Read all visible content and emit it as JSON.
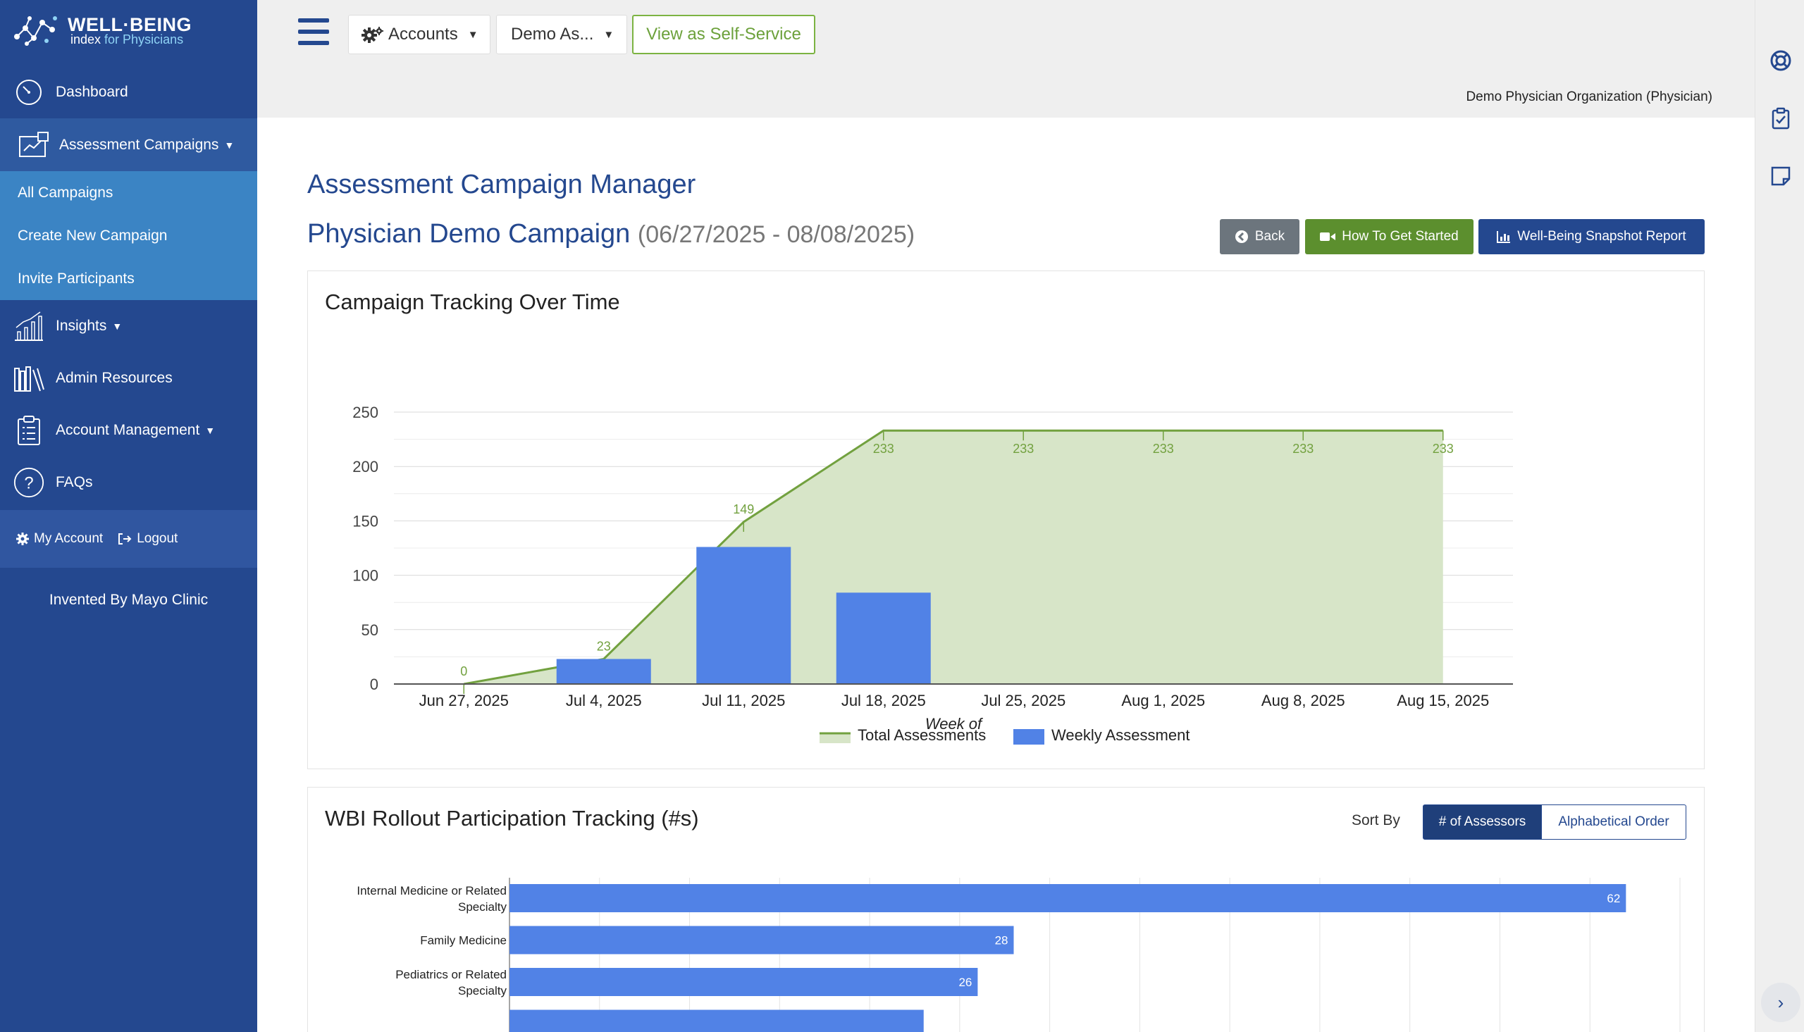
{
  "brand": {
    "title": "WELL·BEING",
    "sub_a": "index",
    "sub_b": "for Physicians"
  },
  "sidebar": {
    "dashboard": "Dashboard",
    "campaigns": "Assessment Campaigns",
    "sub": [
      "All Campaigns",
      "Create New Campaign",
      "Invite Participants"
    ],
    "insights": "Insights",
    "admin": "Admin Resources",
    "account_mgmt": "Account Management",
    "faqs": "FAQs",
    "my_account": "My Account",
    "logout": "Logout",
    "invented": "Invented By Mayo Clinic"
  },
  "topbar": {
    "accounts": "Accounts",
    "demo": "Demo As...",
    "self_service": "View as Self-Service",
    "org": "Demo Physician Organization (Physician)"
  },
  "page": {
    "title": "Assessment Campaign Manager",
    "campaign": "Physician Demo Campaign",
    "dates": "(06/27/2025 - 08/08/2025)",
    "back": "Back",
    "how_to": "How To Get Started",
    "snapshot": "Well-Being Snapshot Report"
  },
  "panel1": {
    "title": "Campaign Tracking Over Time"
  },
  "panel2": {
    "title": "WBI Rollout Participation Tracking (#s)",
    "sort_label": "Sort By",
    "sort_a": "# of Assessors",
    "sort_b": "Alphabetical Order"
  },
  "colors": {
    "primary": "#24488f",
    "bar": "#5182e6",
    "line": "#72a13f",
    "area": "#d7e5c8"
  },
  "chart_data": [
    {
      "type": "bar",
      "title": "",
      "xlabel": "Week of",
      "ylabel": "",
      "ylim": [
        0,
        250
      ],
      "yticks": [
        0,
        50,
        100,
        150,
        200,
        250
      ],
      "categories": [
        "Jun 27, 2025",
        "Jul 4, 2025",
        "Jul 11, 2025",
        "Jul 18, 2025",
        "Jul 25, 2025",
        "Aug 1, 2025",
        "Aug 8, 2025",
        "Aug 15, 2025"
      ],
      "series": [
        {
          "name": "Total Assessments",
          "kind": "area-line",
          "values": [
            0,
            23,
            149,
            233,
            233,
            233,
            233,
            233
          ]
        },
        {
          "name": "Weekly Assessment",
          "kind": "bar",
          "values": [
            0,
            23,
            126,
            84,
            0,
            0,
            0,
            0
          ]
        }
      ],
      "legend": "bottom",
      "grid": true
    },
    {
      "type": "bar",
      "orientation": "horizontal",
      "title": "",
      "xlim": [
        0,
        65
      ],
      "categories": [
        "Internal Medicine or Related Specialty",
        "Family Medicine",
        "Pediatrics or Related Specialty"
      ],
      "values": [
        62,
        28,
        26
      ],
      "grid": true
    }
  ]
}
